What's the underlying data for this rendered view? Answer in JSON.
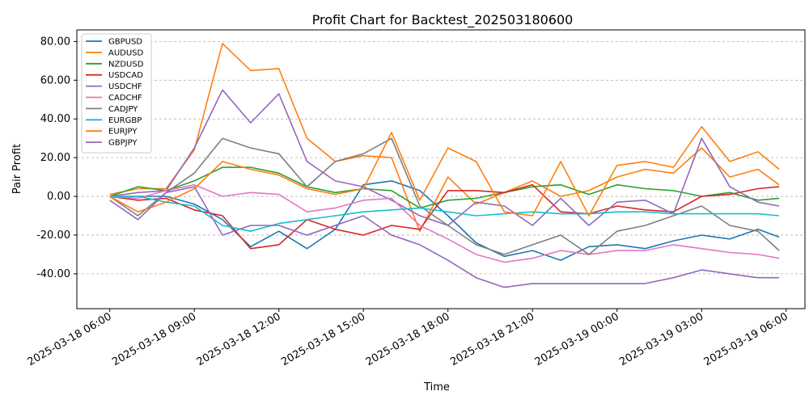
{
  "chart_data": {
    "type": "line",
    "title": "Profit Chart for Backtest_202503180600",
    "xlabel": "Time",
    "ylabel": "Pair Profit",
    "ylim": [
      -58,
      86
    ],
    "xlim": [
      "2025-03-18T04:50",
      "2025-03-19T06:40"
    ],
    "grid": "y dashed",
    "legend_position": "top-left",
    "yticks": [
      {
        "value": -40,
        "label": "-40.00"
      },
      {
        "value": -20,
        "label": "-20.00"
      },
      {
        "value": 0,
        "label": "0.00"
      },
      {
        "value": 20,
        "label": "20.00"
      },
      {
        "value": 40,
        "label": "40.00"
      },
      {
        "value": 60,
        "label": "60.00"
      },
      {
        "value": 80,
        "label": "80.00"
      }
    ],
    "xticks": [
      {
        "value": "2025-03-18T06:00",
        "label": "2025-03-18 06:00"
      },
      {
        "value": "2025-03-18T09:00",
        "label": "2025-03-18 09:00"
      },
      {
        "value": "2025-03-18T12:00",
        "label": "2025-03-18 12:00"
      },
      {
        "value": "2025-03-18T15:00",
        "label": "2025-03-18 15:00"
      },
      {
        "value": "2025-03-18T18:00",
        "label": "2025-03-18 18:00"
      },
      {
        "value": "2025-03-18T21:00",
        "label": "2025-03-18 21:00"
      },
      {
        "value": "2025-03-19T00:00",
        "label": "2025-03-19 00:00"
      },
      {
        "value": "2025-03-19T03:00",
        "label": "2025-03-19 03:00"
      },
      {
        "value": "2025-03-19T06:00",
        "label": "2025-03-19 06:00"
      }
    ],
    "x": [
      "2025-03-18T06:00",
      "2025-03-18T07:00",
      "2025-03-18T08:00",
      "2025-03-18T09:00",
      "2025-03-18T10:00",
      "2025-03-18T11:00",
      "2025-03-18T12:00",
      "2025-03-18T13:00",
      "2025-03-18T14:00",
      "2025-03-18T15:00",
      "2025-03-18T16:00",
      "2025-03-18T17:00",
      "2025-03-18T18:00",
      "2025-03-18T19:00",
      "2025-03-18T20:00",
      "2025-03-18T21:00",
      "2025-03-18T22:00",
      "2025-03-18T23:00",
      "2025-03-19T00:00",
      "2025-03-19T01:00",
      "2025-03-19T02:00",
      "2025-03-19T03:00",
      "2025-03-19T04:00",
      "2025-03-19T05:00",
      "2025-03-19T05:45"
    ],
    "series": [
      {
        "name": "GBPUSD",
        "color": "#1f77b4",
        "values": [
          0,
          0,
          0,
          -4,
          -12,
          -26,
          -18,
          -27,
          -17,
          6,
          8,
          3,
          -10,
          -24,
          -31,
          -28,
          -33,
          -26,
          -25,
          -27,
          -23,
          -20,
          -22,
          -17,
          -21
        ]
      },
      {
        "name": "AUDUSD",
        "color": "#ff7f0e",
        "values": [
          1,
          4,
          4,
          24,
          79,
          65,
          66,
          30,
          18,
          21,
          20,
          -18,
          10,
          -4,
          2,
          8,
          0,
          3,
          10,
          14,
          12,
          25,
          10,
          14,
          6
        ]
      },
      {
        "name": "NZDUSD",
        "color": "#2ca02c",
        "values": [
          0,
          5,
          3,
          8,
          15,
          15,
          12,
          5,
          2,
          4,
          3,
          -6,
          -2,
          -1,
          2,
          5,
          6,
          1,
          6,
          4,
          3,
          0,
          2,
          -2,
          -1
        ]
      },
      {
        "name": "USDCAD",
        "color": "#d62728",
        "values": [
          0,
          -2,
          -1,
          -7,
          -10,
          -27,
          -25,
          -12,
          -17,
          -20,
          -15,
          -17,
          3,
          3,
          2,
          6,
          -8,
          -9,
          -5,
          -7,
          -8,
          0,
          1,
          4,
          5
        ]
      },
      {
        "name": "USDCHF",
        "color": "#9467bd",
        "values": [
          0,
          2,
          3,
          25,
          55,
          38,
          53,
          18,
          8,
          5,
          -2,
          -10,
          -15,
          -3,
          -5,
          -15,
          -1,
          -15,
          -3,
          -2,
          -9,
          30,
          5,
          -3,
          -5
        ]
      },
      {
        "name": "CADCHF",
        "color": "#e377c2",
        "values": [
          0,
          -1,
          3,
          6,
          0,
          2,
          1,
          -8,
          -6,
          -2,
          -1,
          -15,
          -22,
          -30,
          -34,
          -32,
          -28,
          -30,
          -28,
          -28,
          -25,
          -27,
          -29,
          -30,
          -32
        ]
      },
      {
        "name": "CADJPY",
        "color": "#7f7f7f",
        "values": [
          0,
          -10,
          2,
          12,
          30,
          25,
          22,
          5,
          18,
          22,
          30,
          -5,
          -15,
          -25,
          -30,
          -25,
          -20,
          -30,
          -18,
          -15,
          -10,
          -5,
          -15,
          -18,
          -28
        ]
      },
      {
        "name": "EURGBP",
        "color": "#17becf",
        "values": [
          0,
          0,
          -3,
          -5,
          -15,
          -18,
          -14,
          -12,
          -10,
          -8,
          -7,
          -6,
          -8,
          -10,
          -9,
          -8,
          -9,
          -9,
          -8,
          -8,
          -9,
          -9,
          -9,
          -9,
          -10
        ]
      },
      {
        "name": "EURJPY",
        "color": "#ff7f0e",
        "values": [
          0,
          -8,
          -3,
          4,
          18,
          14,
          11,
          4,
          1,
          4,
          33,
          -2,
          25,
          18,
          -8,
          -10,
          18,
          -10,
          16,
          18,
          15,
          36,
          18,
          23,
          14
        ]
      },
      {
        "name": "GBPJPY",
        "color": "#9467bd",
        "values": [
          -2,
          -12,
          2,
          5,
          -20,
          -15,
          -15,
          -20,
          -15,
          -10,
          -20,
          -25,
          -33,
          -42,
          -47,
          -45,
          -45,
          -45,
          -45,
          -45,
          -42,
          -38,
          -40,
          -42,
          -42
        ]
      }
    ]
  }
}
